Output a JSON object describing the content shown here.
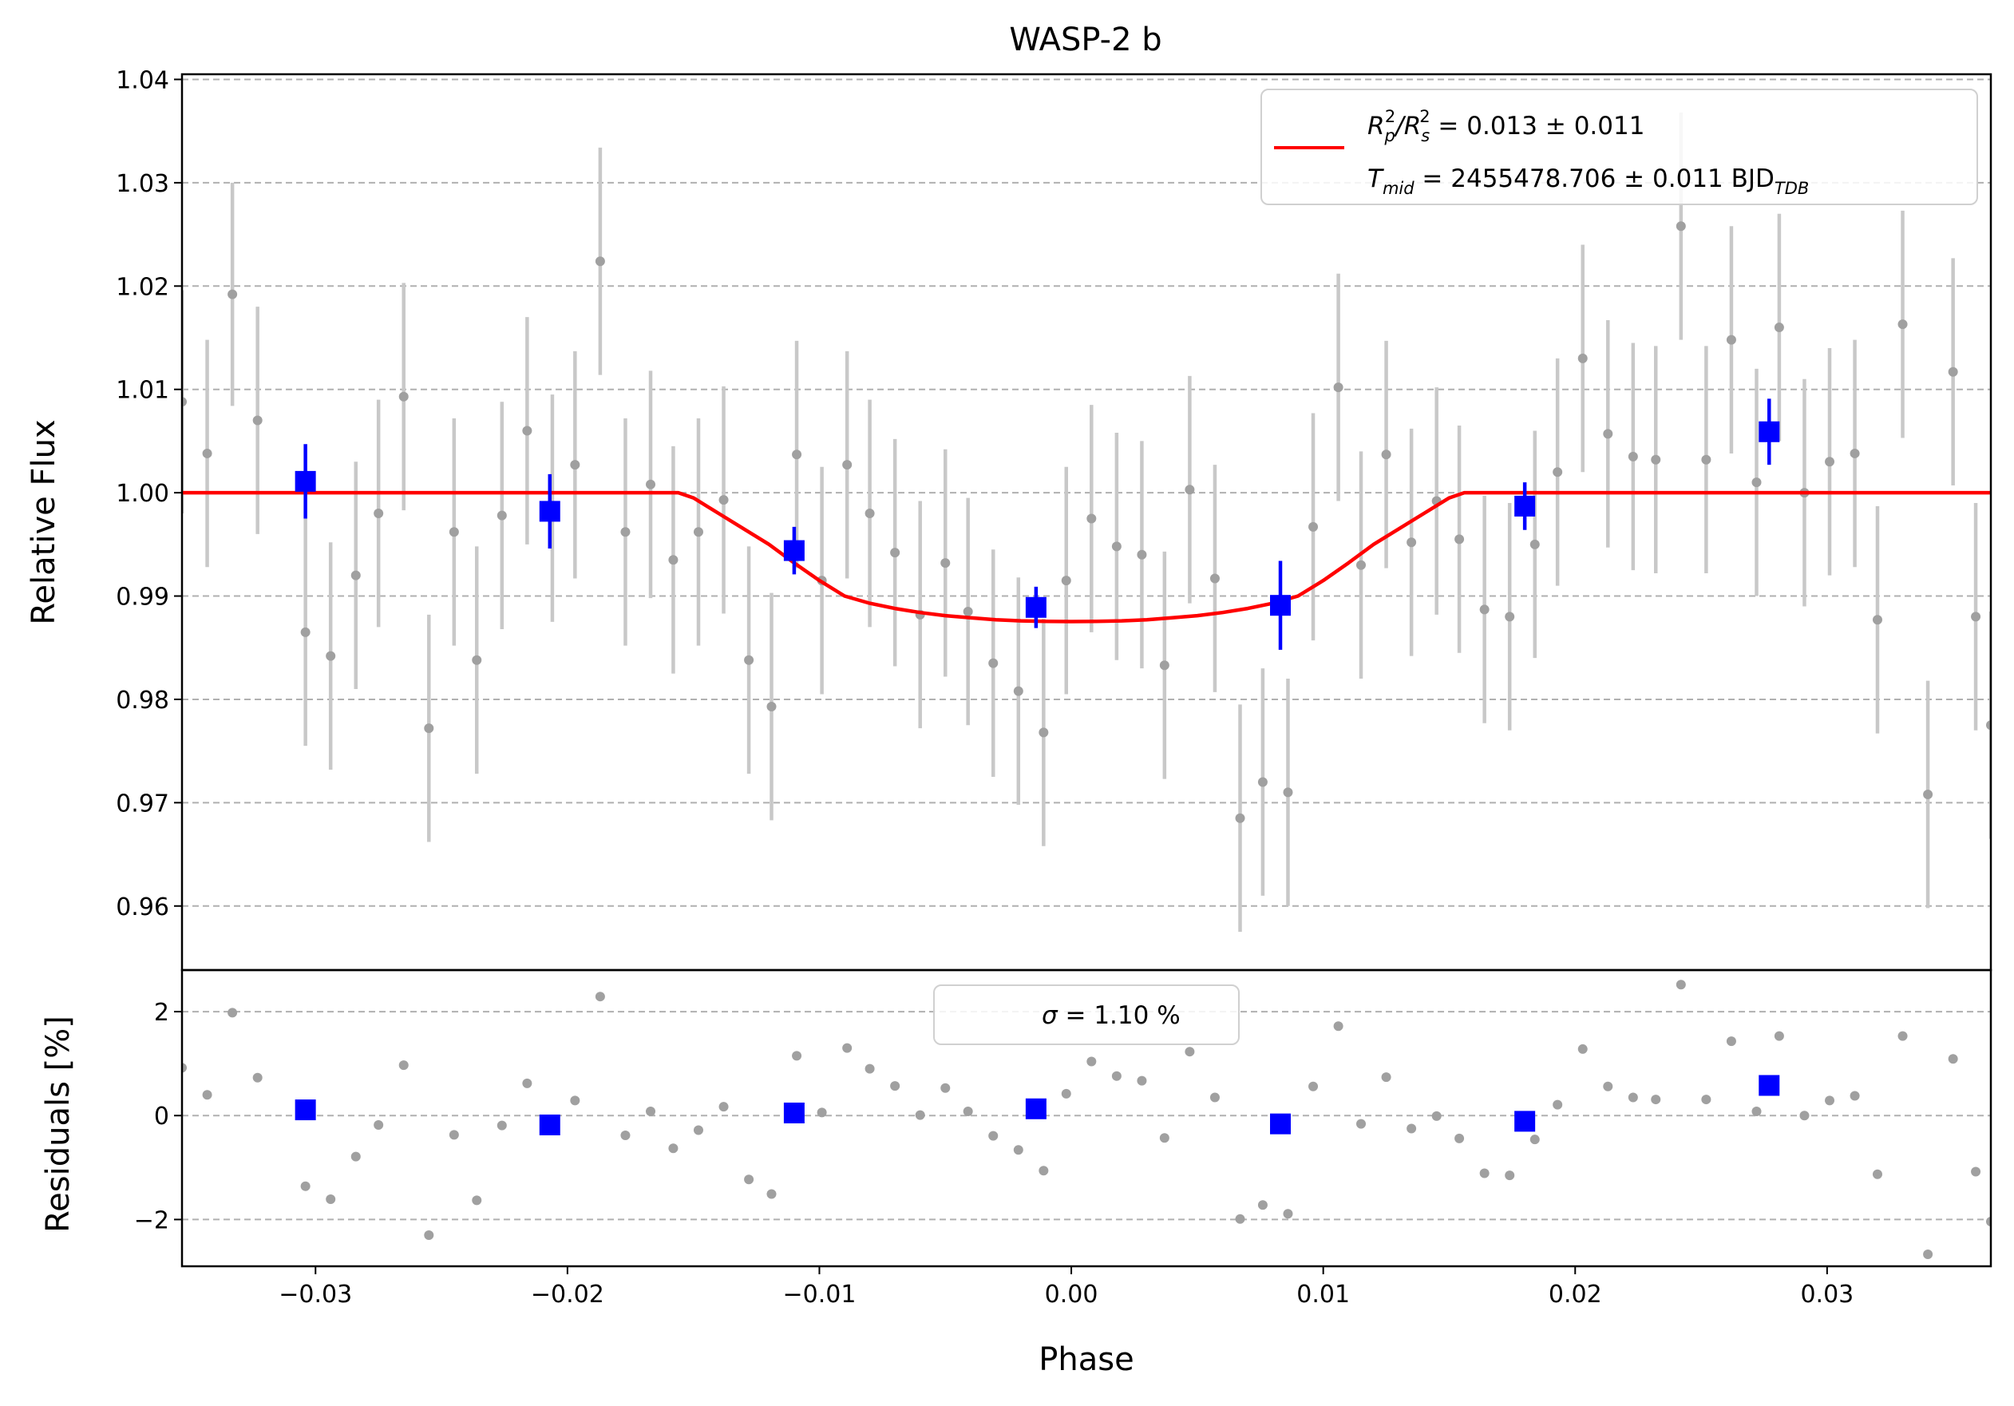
{
  "chart_data": [
    {
      "panel": "transit",
      "type": "scatter",
      "title": "WASP-2 b",
      "xlabel": "",
      "ylabel": "Relative Flux",
      "xlim": [
        -0.0353,
        0.0365
      ],
      "ylim": [
        0.9538,
        1.0405
      ],
      "yticks": [
        0.96,
        0.97,
        0.98,
        0.99,
        1.0,
        1.01,
        1.02,
        1.03,
        1.04
      ],
      "ytick_labels": [
        "0.96",
        "0.97",
        "0.98",
        "0.99",
        "1.00",
        "1.01",
        "1.02",
        "1.03",
        "1.04"
      ],
      "grid": "horizontal-dashed",
      "legend": {
        "placement": "top-right",
        "line_color": "#ff0000",
        "entry1": {
          "prefix": "R",
          "sub1": "p",
          "sup1": "2",
          "mid": "/R",
          "sub2": "s",
          "sup2": "2",
          "value": " = 0.013 ± 0.011"
        },
        "entry2": {
          "prefix": "T",
          "sub": "mid",
          "value": " = 2455478.706 ± 0.011 BJD",
          "unit_sub": "TDB"
        }
      },
      "model": {
        "name": "transit model",
        "color": "#ff0000",
        "x": [
          -0.0353,
          -0.0156,
          -0.015,
          -0.014,
          -0.013,
          -0.012,
          -0.011,
          -0.01,
          -0.009,
          -0.008,
          -0.007,
          -0.006,
          -0.005,
          -0.004,
          -0.003,
          -0.002,
          -0.001,
          0.0,
          0.001,
          0.002,
          0.003,
          0.004,
          0.005,
          0.006,
          0.007,
          0.008,
          0.009,
          0.01,
          0.011,
          0.012,
          0.013,
          0.014,
          0.015,
          0.0156,
          0.0365
        ],
        "y": [
          1.0,
          1.0,
          0.9995,
          0.998,
          0.9965,
          0.995,
          0.9932,
          0.9915,
          0.99,
          0.9893,
          0.9888,
          0.9884,
          0.9881,
          0.9879,
          0.9877,
          0.9876,
          0.98755,
          0.98753,
          0.98755,
          0.9876,
          0.9877,
          0.9879,
          0.9881,
          0.9884,
          0.9888,
          0.9893,
          0.99,
          0.9915,
          0.9932,
          0.995,
          0.9965,
          0.998,
          0.9995,
          1.0,
          1.0
        ]
      },
      "raw": {
        "color": "#808080",
        "x": [
          -0.0353,
          -0.0343,
          -0.0333,
          -0.0323,
          -0.0304,
          -0.0294,
          -0.0284,
          -0.0275,
          -0.0265,
          -0.0255,
          -0.0245,
          -0.0236,
          -0.0226,
          -0.0216,
          -0.0206,
          -0.0197,
          -0.0187,
          -0.0177,
          -0.0167,
          -0.0158,
          -0.0148,
          -0.0138,
          -0.0128,
          -0.0119,
          -0.0109,
          -0.0099,
          -0.0089,
          -0.008,
          -0.007,
          -0.006,
          -0.005,
          -0.0041,
          -0.0031,
          -0.0021,
          -0.0011,
          -0.0002,
          0.0008,
          0.0018,
          0.0028,
          0.0037,
          0.0047,
          0.0057,
          0.0067,
          0.0076,
          0.0086,
          0.0096,
          0.0106,
          0.0115,
          0.0125,
          0.0135,
          0.0145,
          0.0154,
          0.0164,
          0.0174,
          0.0184,
          0.0193,
          0.0203,
          0.0213,
          0.0223,
          0.0232,
          0.0242,
          0.0252,
          0.0262,
          0.0272,
          0.0281,
          0.0291,
          0.0301,
          0.0311,
          0.032,
          0.033,
          0.034,
          0.035,
          0.0359,
          0.0365
        ],
        "y": [
          1.0088,
          1.0038,
          1.0192,
          1.007,
          0.9865,
          0.9842,
          0.992,
          0.998,
          1.0093,
          0.9772,
          0.9962,
          0.9838,
          0.9978,
          1.006,
          0.9985,
          1.0027,
          1.0224,
          0.9962,
          1.0008,
          0.9935,
          0.9962,
          0.9993,
          0.9838,
          0.9793,
          1.0037,
          0.9915,
          1.0027,
          0.998,
          0.9942,
          0.9882,
          0.9932,
          0.9885,
          0.9835,
          0.9808,
          0.9768,
          0.9915,
          0.9975,
          0.9948,
          0.994,
          0.9833,
          1.0003,
          0.9917,
          0.9685,
          0.972,
          0.971,
          0.9967,
          1.0102,
          0.993,
          1.0037,
          0.9952,
          0.9992,
          0.9955,
          0.9887,
          0.988,
          0.995,
          1.002,
          1.013,
          1.0057,
          1.0035,
          1.0032,
          1.0258,
          1.0032,
          1.0148,
          1.001,
          1.016,
          1.0,
          1.003,
          1.0038,
          0.9877,
          1.0163,
          0.9708,
          1.0117,
          0.988,
          0.9775
        ],
        "err": [
          0.0108,
          0.011,
          0.0108,
          0.011,
          0.011,
          0.011,
          0.011,
          0.011,
          0.011,
          0.011,
          0.011,
          0.011,
          0.011,
          0.011,
          0.011,
          0.011,
          0.011,
          0.011,
          0.011,
          0.011,
          0.011,
          0.011,
          0.011,
          0.011,
          0.011,
          0.011,
          0.011,
          0.011,
          0.011,
          0.011,
          0.011,
          0.011,
          0.011,
          0.011,
          0.011,
          0.011,
          0.011,
          0.011,
          0.011,
          0.011,
          0.011,
          0.011,
          0.011,
          0.011,
          0.011,
          0.011,
          0.011,
          0.011,
          0.011,
          0.011,
          0.011,
          0.011,
          0.011,
          0.011,
          0.011,
          0.011,
          0.011,
          0.011,
          0.011,
          0.011,
          0.011,
          0.011,
          0.011,
          0.011,
          0.011,
          0.011,
          0.011,
          0.011,
          0.011,
          0.011,
          0.011,
          0.011,
          0.011,
          0.011
        ]
      },
      "binned": {
        "color": "#0000ff",
        "x": [
          -0.0304,
          -0.0207,
          -0.011,
          -0.0014,
          0.0083,
          0.018,
          0.0277
        ],
        "y": [
          1.0011,
          0.9982,
          0.9944,
          0.9889,
          0.9891,
          0.9987,
          1.0059
        ],
        "err": [
          0.0036,
          0.0036,
          0.0023,
          0.002,
          0.0043,
          0.0023,
          0.0032
        ]
      }
    },
    {
      "panel": "residuals",
      "type": "scatter",
      "title": "",
      "xlabel": "Phase",
      "ylabel": "Residuals [%]",
      "xlim": [
        -0.0353,
        0.0365
      ],
      "ylim": [
        -2.9,
        2.8
      ],
      "yticks": [
        -2,
        0,
        2
      ],
      "ytick_labels": [
        "−2",
        "0",
        "2"
      ],
      "xticks": [
        -0.03,
        -0.02,
        -0.01,
        0.0,
        0.01,
        0.02,
        0.03
      ],
      "xtick_labels": [
        "−0.03",
        "−0.02",
        "−0.01",
        "0.00",
        "0.01",
        "0.02",
        "0.03"
      ],
      "grid": "horizontal-dashed",
      "legend": {
        "placement": "top-center",
        "symbol": "σ",
        "value": " = 1.10 %"
      },
      "raw": {
        "color": "#808080",
        "x": [
          -0.0353,
          -0.0343,
          -0.0333,
          -0.0323,
          -0.0304,
          -0.0294,
          -0.0284,
          -0.0275,
          -0.0265,
          -0.0255,
          -0.0245,
          -0.0236,
          -0.0226,
          -0.0216,
          -0.0206,
          -0.0197,
          -0.0187,
          -0.0177,
          -0.0167,
          -0.0158,
          -0.0148,
          -0.0138,
          -0.0128,
          -0.0119,
          -0.0109,
          -0.0099,
          -0.0089,
          -0.008,
          -0.007,
          -0.006,
          -0.005,
          -0.0041,
          -0.0031,
          -0.0021,
          -0.0011,
          -0.0002,
          0.0008,
          0.0018,
          0.0028,
          0.0037,
          0.0047,
          0.0057,
          0.0067,
          0.0076,
          0.0086,
          0.0096,
          0.0106,
          0.0115,
          0.0125,
          0.0135,
          0.0145,
          0.0154,
          0.0164,
          0.0174,
          0.0184,
          0.0193,
          0.0203,
          0.0213,
          0.0223,
          0.0232,
          0.0242,
          0.0252,
          0.0262,
          0.0272,
          0.0281,
          0.0291,
          0.0301,
          0.0311,
          0.032,
          0.033,
          0.034,
          0.035,
          0.0359,
          0.0365
        ],
        "y": [
          0.92,
          0.4,
          1.98,
          0.73,
          -1.36,
          -1.61,
          -0.79,
          -0.18,
          0.97,
          -2.3,
          -0.37,
          -1.63,
          -0.19,
          0.62,
          -0.13,
          0.29,
          2.29,
          -0.38,
          0.08,
          -0.63,
          -0.28,
          0.17,
          -1.23,
          -1.51,
          1.15,
          0.06,
          1.3,
          0.9,
          0.57,
          0.01,
          0.53,
          0.08,
          -0.39,
          -0.66,
          -1.06,
          0.42,
          1.04,
          0.76,
          0.67,
          -0.43,
          1.23,
          0.35,
          -1.99,
          -1.72,
          -1.89,
          0.56,
          1.72,
          -0.16,
          0.74,
          -0.25,
          -0.01,
          -0.44,
          -1.11,
          -1.15,
          -0.46,
          0.21,
          1.28,
          0.56,
          0.35,
          0.31,
          2.52,
          0.31,
          1.43,
          0.08,
          1.53,
          0.0,
          0.29,
          0.38,
          -1.13,
          1.53,
          -2.67,
          1.09,
          -1.08,
          -2.04
        ]
      },
      "binned": {
        "color": "#0000ff",
        "x": [
          -0.0304,
          -0.0207,
          -0.011,
          -0.0014,
          0.0083,
          0.018,
          0.0277
        ],
        "y": [
          0.11,
          -0.18,
          0.05,
          0.13,
          -0.16,
          -0.11,
          0.58
        ]
      }
    }
  ]
}
